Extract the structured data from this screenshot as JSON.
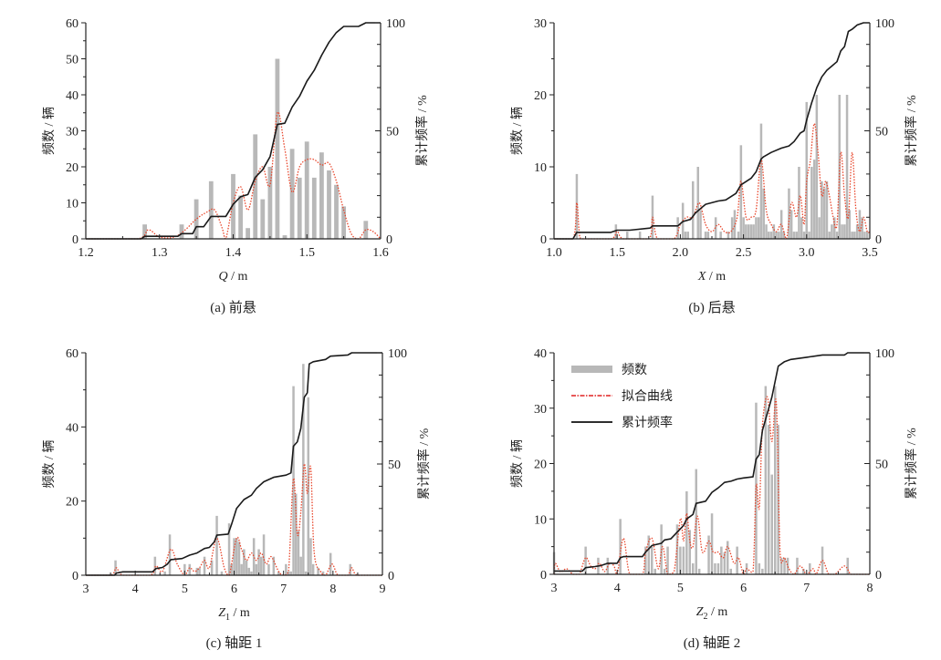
{
  "chart_data": [
    {
      "id": "a",
      "type": "bar",
      "caption": "(a)  前悬",
      "xlabel_var": "Q",
      "xlabel_unit": " / m",
      "xlabel_sub": "",
      "ylabel": "频数 / 辆",
      "y2label": "累计频率 / %",
      "xlim": [
        1.2,
        1.6
      ],
      "xticks": [
        1.2,
        1.3,
        1.4,
        1.5,
        1.6
      ],
      "xtick_labels": [
        "1.2",
        "1.3",
        "1.4",
        "1.5",
        "1.6"
      ],
      "ylim": [
        0,
        60
      ],
      "yticks": [
        0,
        10,
        20,
        30,
        40,
        50,
        60
      ],
      "y2lim": [
        0,
        100
      ],
      "y2ticks": [
        0,
        50,
        100
      ],
      "bar_width": 0.006,
      "bars": {
        "x": [
          1.28,
          1.33,
          1.35,
          1.37,
          1.4,
          1.41,
          1.42,
          1.43,
          1.44,
          1.45,
          1.46,
          1.47,
          1.48,
          1.49,
          1.5,
          1.51,
          1.52,
          1.53,
          1.54,
          1.55,
          1.58
        ],
        "values": [
          4,
          4,
          11,
          16,
          18,
          12,
          3,
          29,
          11,
          20,
          50,
          1,
          25,
          17,
          27,
          17,
          24,
          19,
          15,
          9,
          5
        ]
      },
      "fit_curve": {
        "x": [
          1.2,
          1.27,
          1.285,
          1.3,
          1.32,
          1.335,
          1.35,
          1.365,
          1.375,
          1.385,
          1.39,
          1.4,
          1.41,
          1.42,
          1.43,
          1.44,
          1.45,
          1.46,
          1.47,
          1.48,
          1.49,
          1.5,
          1.51,
          1.52,
          1.53,
          1.54,
          1.55,
          1.56,
          1.57,
          1.58,
          1.59,
          1.6
        ],
        "values": [
          0,
          0,
          2.5,
          0.5,
          0.5,
          2.5,
          5.5,
          7.5,
          8,
          3,
          0,
          10,
          14.5,
          8,
          16,
          20,
          15,
          35,
          25,
          13,
          20,
          22,
          22,
          20.5,
          21,
          16,
          8,
          1.5,
          0,
          2.5,
          2,
          0
        ]
      },
      "cumulative": {
        "x": [
          1.2,
          1.275,
          1.28,
          1.325,
          1.33,
          1.345,
          1.35,
          1.36,
          1.37,
          1.39,
          1.4,
          1.41,
          1.42,
          1.43,
          1.44,
          1.45,
          1.46,
          1.47,
          1.48,
          1.49,
          1.5,
          1.51,
          1.52,
          1.53,
          1.54,
          1.55,
          1.57,
          1.58,
          1.6
        ],
        "values": [
          0,
          0,
          1.2,
          1.2,
          2.4,
          2.4,
          5.6,
          5.6,
          10.4,
          10.4,
          16,
          19.5,
          20.5,
          28.5,
          32,
          38,
          53,
          53.5,
          61,
          66,
          73,
          78,
          85,
          91,
          95.5,
          98.3,
          98.3,
          100,
          100
        ]
      }
    },
    {
      "id": "b",
      "type": "bar",
      "caption": "(b)  后悬",
      "xlabel_var": "X",
      "xlabel_unit": " / m",
      "xlabel_sub": "",
      "ylabel": "频数 / 辆",
      "y2label": "累计频率 / %",
      "xlim": [
        1.0,
        3.5
      ],
      "xticks": [
        1.0,
        1.5,
        2.0,
        2.5,
        3.0,
        3.5
      ],
      "xtick_labels": [
        "1.0",
        "1.5",
        "2.0",
        "2.5",
        "3.0",
        "3.5"
      ],
      "ylim": [
        0,
        30
      ],
      "yticks": [
        0,
        10,
        20,
        30
      ],
      "y2lim": [
        0,
        100
      ],
      "y2ticks": [
        0,
        50,
        100
      ],
      "bar_width": 0.014,
      "bars": {
        "x": [
          1.18,
          1.49,
          1.58,
          1.68,
          1.78,
          1.98,
          2.02,
          2.04,
          2.06,
          2.1,
          2.14,
          2.16,
          2.2,
          2.22,
          2.28,
          2.32,
          2.38,
          2.41,
          2.43,
          2.46,
          2.48,
          2.5,
          2.52,
          2.54,
          2.56,
          2.58,
          2.6,
          2.62,
          2.64,
          2.66,
          2.68,
          2.7,
          2.72,
          2.74,
          2.76,
          2.78,
          2.8,
          2.82,
          2.86,
          2.88,
          2.9,
          2.92,
          2.94,
          2.96,
          2.98,
          3.0,
          3.02,
          3.04,
          3.06,
          3.08,
          3.1,
          3.12,
          3.14,
          3.16,
          3.18,
          3.2,
          3.22,
          3.24,
          3.26,
          3.28,
          3.3,
          3.32,
          3.34,
          3.36,
          3.38,
          3.4,
          3.42,
          3.44,
          3.46,
          3.48
        ],
        "values": [
          9,
          2,
          1,
          1,
          6,
          3,
          5,
          1,
          1,
          8,
          10,
          4,
          1,
          1,
          3,
          1,
          1,
          3,
          4,
          1,
          13,
          3,
          2,
          2,
          2,
          2,
          3,
          3,
          16,
          7,
          2,
          1,
          1,
          2,
          1,
          1,
          4,
          1,
          7,
          4,
          1,
          1,
          10,
          3,
          1,
          19,
          1,
          10,
          11,
          20,
          3,
          8,
          7,
          8,
          1,
          2,
          3,
          1,
          20,
          2,
          2,
          20,
          4,
          1,
          1,
          2,
          4,
          3,
          1,
          1
        ]
      },
      "fit_curve": {
        "x": [
          1.0,
          1.15,
          1.18,
          1.2,
          1.23,
          1.45,
          1.5,
          1.55,
          1.75,
          1.78,
          1.82,
          1.95,
          2.0,
          2.05,
          2.1,
          2.15,
          2.2,
          2.25,
          2.3,
          2.35,
          2.4,
          2.45,
          2.48,
          2.52,
          2.56,
          2.6,
          2.64,
          2.68,
          2.72,
          2.76,
          2.8,
          2.84,
          2.88,
          2.92,
          2.95,
          2.98,
          3.0,
          3.03,
          3.06,
          3.09,
          3.12,
          3.15,
          3.18,
          3.21,
          3.24,
          3.27,
          3.3,
          3.33,
          3.36,
          3.39,
          3.42,
          3.45,
          3.48,
          3.5
        ],
        "values": [
          0,
          0,
          5,
          1,
          0,
          0,
          1,
          0,
          0,
          3,
          0,
          0,
          2,
          3,
          3,
          5,
          2,
          1,
          2,
          1,
          1,
          3,
          8,
          3,
          3,
          4,
          11,
          4,
          2,
          1,
          2,
          0,
          5,
          3,
          6,
          2,
          8,
          11,
          16,
          12,
          6,
          8,
          6,
          3,
          2,
          12,
          6,
          3,
          12,
          4,
          1,
          3,
          1,
          1
        ]
      },
      "cumulative": {
        "x": [
          1.0,
          1.15,
          1.18,
          1.45,
          1.5,
          1.6,
          1.76,
          1.78,
          1.98,
          2.02,
          2.08,
          2.12,
          2.16,
          2.2,
          2.3,
          2.36,
          2.44,
          2.48,
          2.56,
          2.6,
          2.64,
          2.66,
          2.72,
          2.8,
          2.86,
          2.9,
          2.95,
          2.98,
          3.0,
          3.04,
          3.08,
          3.12,
          3.16,
          3.2,
          3.24,
          3.27,
          3.3,
          3.33,
          3.36,
          3.4,
          3.45,
          3.5
        ],
        "values": [
          0,
          0,
          3,
          3,
          4,
          4,
          5,
          6,
          6,
          8,
          9,
          12,
          14,
          16,
          17.5,
          18,
          21,
          25,
          28,
          31,
          37,
          38,
          40,
          42,
          43,
          45,
          49,
          50,
          55,
          63,
          70,
          75,
          78,
          80,
          82,
          87,
          89,
          96,
          97,
          99,
          100,
          100
        ]
      }
    },
    {
      "id": "c",
      "type": "bar",
      "caption": "(c)  轴距 1",
      "xlabel_var": "Z",
      "xlabel_unit": " / m",
      "xlabel_sub": "1",
      "ylabel": "频数 / 辆",
      "y2label": "累计频率 / %",
      "xlim": [
        3,
        9
      ],
      "xticks": [
        3,
        4,
        5,
        6,
        7,
        8,
        9
      ],
      "xtick_labels": [
        "3",
        "4",
        "5",
        "6",
        "7",
        "8",
        "9"
      ],
      "ylim": [
        0,
        60
      ],
      "yticks": [
        0,
        20,
        40,
        60
      ],
      "y2lim": [
        0,
        100
      ],
      "y2ticks": [
        0,
        50,
        100
      ],
      "bar_width": 0.04,
      "bars": {
        "x": [
          3.6,
          4.4,
          4.6,
          4.7,
          5.0,
          5.1,
          5.25,
          5.3,
          5.4,
          5.55,
          5.65,
          5.75,
          5.9,
          5.95,
          6.0,
          6.05,
          6.1,
          6.15,
          6.2,
          6.25,
          6.3,
          6.35,
          6.4,
          6.45,
          6.5,
          6.55,
          6.6,
          6.7,
          6.8,
          6.9,
          7.05,
          7.1,
          7.15,
          7.2,
          7.25,
          7.3,
          7.35,
          7.4,
          7.45,
          7.5,
          7.55,
          7.6,
          7.7,
          7.8,
          7.95,
          8.35
        ],
        "values": [
          4,
          5,
          1,
          11,
          3,
          3,
          2,
          2,
          5,
          4,
          16,
          1,
          14,
          3,
          10,
          10,
          9,
          3,
          7,
          4,
          2,
          1,
          10,
          3,
          7,
          5,
          11,
          3,
          5,
          1,
          3,
          1,
          1,
          51,
          22,
          12,
          5,
          57,
          1,
          48,
          10,
          3,
          2,
          1,
          6,
          3
        ]
      },
      "fit_curve": {
        "x": [
          3.0,
          3.5,
          3.62,
          3.75,
          4.3,
          4.42,
          4.55,
          4.72,
          4.85,
          5.0,
          5.1,
          5.2,
          5.3,
          5.4,
          5.5,
          5.65,
          5.8,
          5.9,
          6.05,
          6.15,
          6.25,
          6.35,
          6.45,
          6.55,
          6.65,
          6.75,
          6.9,
          7.0,
          7.1,
          7.2,
          7.28,
          7.35,
          7.42,
          7.48,
          7.55,
          7.62,
          7.75,
          7.85,
          7.98,
          8.1,
          8.3,
          8.38,
          8.5,
          9.0
        ],
        "values": [
          0,
          0,
          2,
          0,
          0,
          2.5,
          1,
          7,
          3,
          0,
          2,
          1,
          2,
          4,
          2,
          10,
          2,
          0,
          10,
          7,
          4,
          6,
          4,
          6,
          3,
          5,
          1,
          0,
          1,
          26,
          11,
          17,
          30,
          22,
          29,
          6,
          1,
          0,
          3,
          0,
          0,
          2,
          0,
          0
        ]
      },
      "cumulative": {
        "x": [
          3.0,
          3.58,
          3.62,
          3.75,
          4.35,
          4.42,
          4.55,
          4.65,
          4.72,
          4.95,
          5.1,
          5.25,
          5.4,
          5.5,
          5.6,
          5.65,
          5.88,
          5.95,
          6.05,
          6.2,
          6.35,
          6.45,
          6.6,
          6.8,
          7.05,
          7.15,
          7.2,
          7.28,
          7.35,
          7.42,
          7.48,
          7.52,
          7.6,
          7.85,
          7.95,
          8.3,
          8.38,
          9.0
        ],
        "values": [
          0,
          0,
          1,
          1.5,
          1.5,
          3,
          3.5,
          5,
          7,
          7.5,
          9,
          10,
          12,
          12.5,
          15,
          18,
          18.5,
          23,
          30,
          34,
          36,
          39,
          42,
          44,
          45,
          46,
          58,
          60,
          66,
          80,
          82,
          95,
          96,
          97,
          98.5,
          99,
          100,
          100
        ]
      }
    },
    {
      "id": "d",
      "type": "bar",
      "caption": "(d)  轴距 2",
      "xlabel_var": "Z",
      "xlabel_unit": " / m",
      "xlabel_sub": "2",
      "ylabel": "频数 / 辆",
      "y2label": "累计频率 / %",
      "xlim": [
        3,
        8
      ],
      "xticks": [
        3,
        4,
        5,
        6,
        7,
        8
      ],
      "xtick_labels": [
        "3",
        "4",
        "5",
        "6",
        "7",
        "8"
      ],
      "ylim": [
        0,
        40
      ],
      "yticks": [
        0,
        10,
        20,
        30,
        40
      ],
      "y2lim": [
        0,
        100
      ],
      "y2ticks": [
        0,
        50,
        100
      ],
      "bar_width": 0.03,
      "legend": {
        "position": "top-left",
        "items": [
          {
            "label": "频数",
            "kind": "bar"
          },
          {
            "label": "拟合曲线",
            "kind": "fit"
          },
          {
            "label": "累计频率",
            "kind": "cumulative"
          }
        ]
      },
      "bars": {
        "x": [
          3.0,
          3.5,
          3.7,
          3.85,
          4.05,
          4.45,
          4.5,
          4.55,
          4.6,
          4.7,
          4.75,
          4.8,
          4.95,
          5.0,
          5.05,
          5.1,
          5.15,
          5.2,
          5.25,
          5.3,
          5.45,
          5.5,
          5.55,
          5.6,
          5.65,
          5.7,
          5.75,
          5.8,
          5.9,
          6.05,
          6.2,
          6.25,
          6.3,
          6.35,
          6.4,
          6.45,
          6.5,
          6.55,
          6.6,
          6.65,
          6.7,
          6.85,
          6.95,
          7.05,
          7.25,
          7.65
        ],
        "values": [
          4,
          5,
          3,
          3,
          10,
          5,
          7,
          5,
          1,
          9,
          1,
          5,
          9,
          5,
          5,
          15,
          8,
          2,
          19,
          1,
          7,
          11,
          2,
          2,
          5,
          4,
          6,
          1,
          5,
          2,
          31,
          2,
          1,
          34,
          27,
          18,
          34,
          27,
          3,
          3,
          3,
          3,
          1,
          2,
          5,
          3
        ]
      },
      "fit_curve": {
        "x": [
          3.0,
          3.02,
          3.1,
          3.2,
          3.3,
          3.4,
          3.5,
          3.58,
          3.65,
          3.72,
          3.8,
          3.88,
          3.95,
          4.0,
          4.1,
          4.2,
          4.4,
          4.45,
          4.55,
          4.65,
          4.72,
          4.8,
          4.9,
          5.0,
          5.05,
          5.1,
          5.15,
          5.2,
          5.27,
          5.35,
          5.45,
          5.52,
          5.6,
          5.68,
          5.75,
          5.85,
          5.92,
          6.0,
          6.05,
          6.15,
          6.2,
          6.25,
          6.3,
          6.38,
          6.45,
          6.52,
          6.58,
          6.65,
          6.72,
          6.8,
          6.9,
          7.0,
          7.1,
          7.15,
          7.25,
          7.35,
          7.45,
          7.6,
          7.7,
          7.8,
          8.0
        ],
        "values": [
          0,
          2,
          0.5,
          1,
          0,
          0,
          3,
          1.5,
          1,
          2,
          0.5,
          2,
          1.5,
          0,
          6.5,
          0,
          0,
          4,
          6.5,
          1,
          5,
          0,
          0.5,
          10,
          6,
          11,
          6,
          5,
          10.5,
          4,
          6,
          4,
          4,
          3,
          5,
          2,
          3,
          0,
          1,
          0.5,
          16,
          12,
          27,
          32,
          24,
          31,
          4,
          3,
          1,
          0,
          1.5,
          0,
          1,
          0,
          2.5,
          0,
          0,
          1.5,
          0,
          0,
          0
        ]
      },
      "cumulative": {
        "x": [
          3.0,
          3.45,
          3.5,
          3.65,
          3.75,
          3.85,
          4.0,
          4.05,
          4.1,
          4.4,
          4.45,
          4.55,
          4.7,
          4.75,
          4.85,
          4.95,
          5.05,
          5.1,
          5.2,
          5.25,
          5.4,
          5.5,
          5.6,
          5.7,
          5.8,
          5.9,
          6.0,
          6.15,
          6.2,
          6.25,
          6.3,
          6.4,
          6.45,
          6.55,
          6.65,
          6.75,
          7.0,
          7.25,
          7.6,
          7.65,
          8.0
        ],
        "values": [
          1.5,
          1.5,
          3,
          3.5,
          4,
          5,
          5,
          7.5,
          8,
          8,
          10,
          13,
          14,
          15.5,
          16,
          19,
          22,
          25,
          27,
          32,
          33,
          37,
          39,
          41.5,
          42,
          43,
          43.5,
          44,
          52,
          54,
          65,
          75,
          80,
          94,
          96,
          97,
          98,
          99,
          99,
          100,
          100
        ]
      }
    }
  ]
}
